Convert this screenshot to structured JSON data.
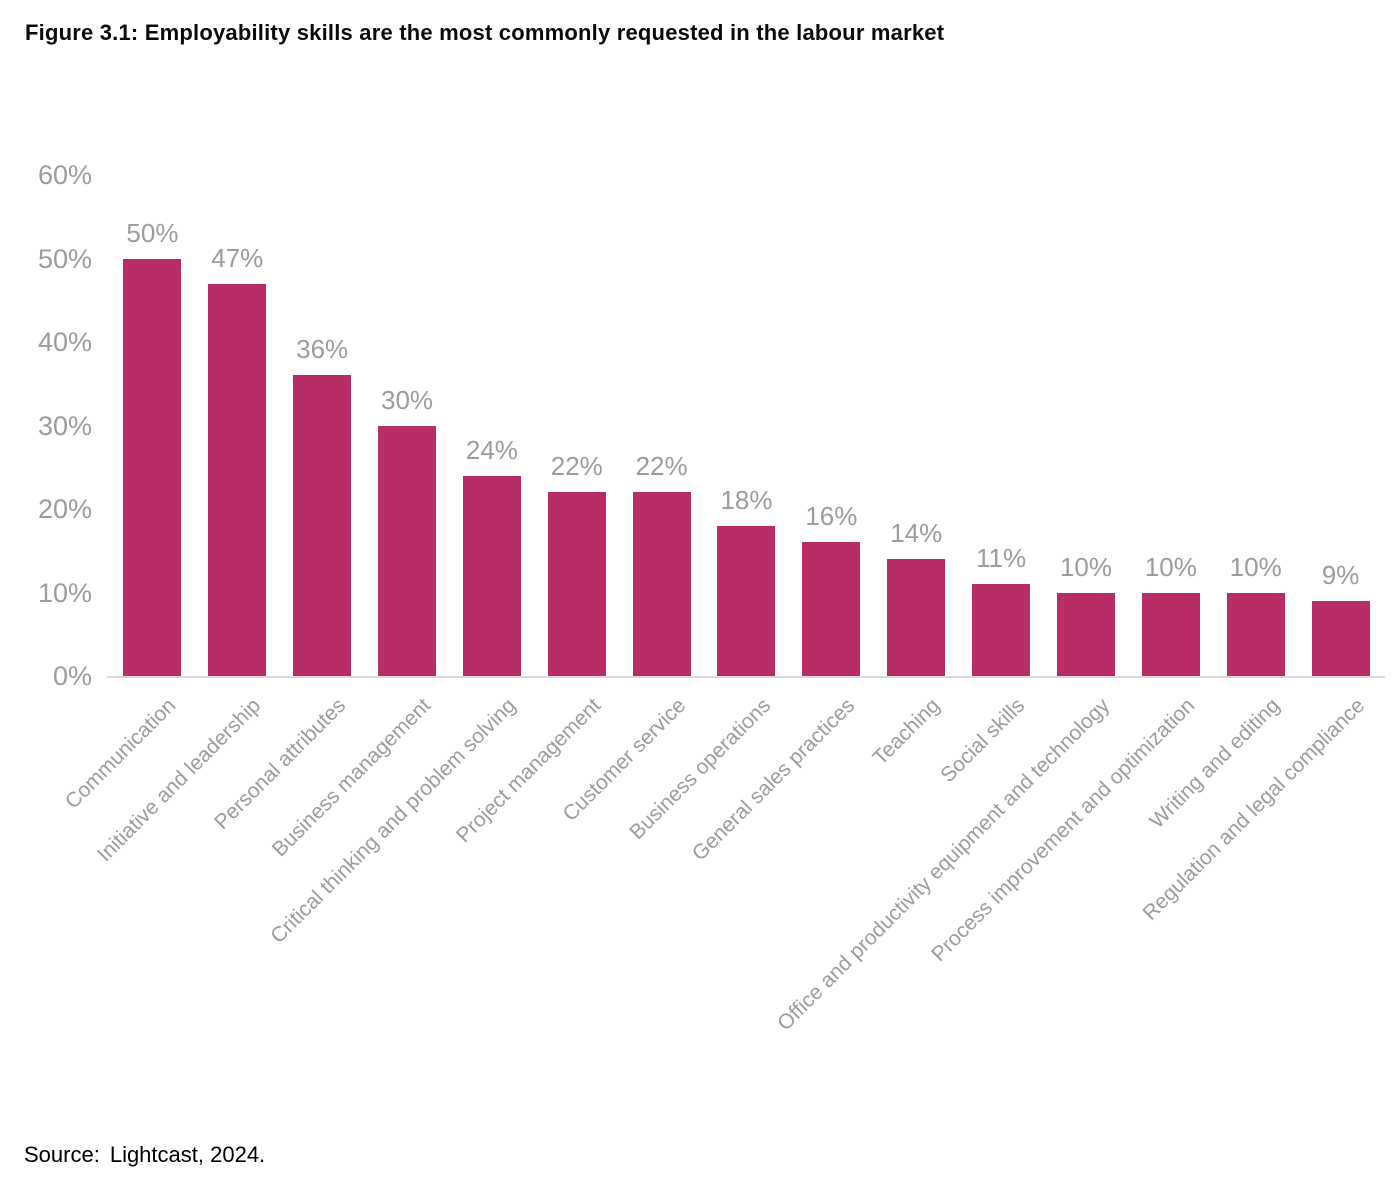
{
  "figure": {
    "title": "Figure 3.1: Employability skills are the most commonly requested in the labour market",
    "source_label": "Source:",
    "source_text": "Lightcast, 2024."
  },
  "chart_data": {
    "type": "bar",
    "title": "Figure 3.1: Employability skills are the most commonly requested in the labour market",
    "categories": [
      "Communication",
      "Initiative and leadership",
      "Personal attributes",
      "Business management",
      "Critical thinking and problem solving",
      "Project management",
      "Customer service",
      "Business operations",
      "General sales practices",
      "Teaching",
      "Social skills",
      "Office and productivity equipment and technology",
      "Process improvement and optimization",
      "Writing and editing",
      "Regulation and legal compliance"
    ],
    "values": [
      50,
      47,
      36,
      30,
      24,
      22,
      22,
      18,
      16,
      14,
      11,
      10,
      10,
      10,
      9
    ],
    "value_labels": [
      "50%",
      "47%",
      "36%",
      "30%",
      "24%",
      "22%",
      "22%",
      "18%",
      "16%",
      "14%",
      "11%",
      "10%",
      "10%",
      "10%",
      "9%"
    ],
    "xlabel": "",
    "ylabel": "",
    "ylim": [
      0,
      60
    ],
    "y_ticks": [
      "0%",
      "10%",
      "20%",
      "30%",
      "40%",
      "50%",
      "60%"
    ],
    "y_tick_values": [
      0,
      10,
      20,
      30,
      40,
      50,
      60
    ],
    "grid": false,
    "legend": false,
    "bar_color": "#b82c68",
    "tick_label_color": "#9c9c9c",
    "axis_line_color": "#dadada",
    "source": "Source:  Lightcast, 2024."
  }
}
